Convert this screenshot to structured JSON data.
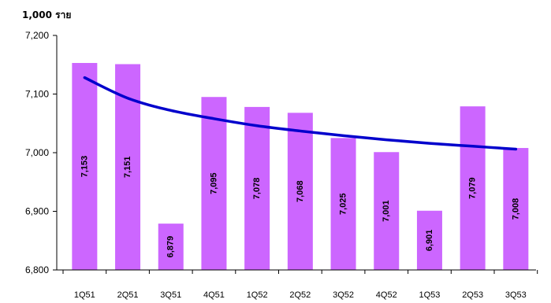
{
  "chart_data": {
    "type": "bar",
    "ylabel": "1,000 ราย",
    "categories": [
      "1Q51",
      "2Q51",
      "3Q51",
      "4Q51",
      "1Q52",
      "2Q52",
      "3Q52",
      "4Q52",
      "1Q53",
      "2Q53",
      "3Q53"
    ],
    "values": [
      7153,
      7151,
      6879,
      7095,
      7078,
      7068,
      7025,
      7001,
      6901,
      7079,
      7008
    ],
    "data_labels": [
      "7,153",
      "7,151",
      "6,879",
      "7,095",
      "7,078",
      "7,068",
      "7,025",
      "7,001",
      "6,901",
      "7,079",
      "7,008"
    ],
    "ylim": [
      6800,
      7200
    ],
    "yticks": [
      6800,
      6900,
      7000,
      7100,
      7200
    ],
    "ytick_labels": [
      "6,800",
      "6,900",
      "7,000",
      "7,100",
      "7,200"
    ],
    "bar_color": "#cc66ff",
    "trendline": {
      "type": "log",
      "color": "#0000cc",
      "values": [
        7128,
        7093,
        7072,
        7058,
        7046,
        7037,
        7029,
        7022,
        7016,
        7011,
        7006
      ]
    },
    "grid": false,
    "legend": "none"
  }
}
